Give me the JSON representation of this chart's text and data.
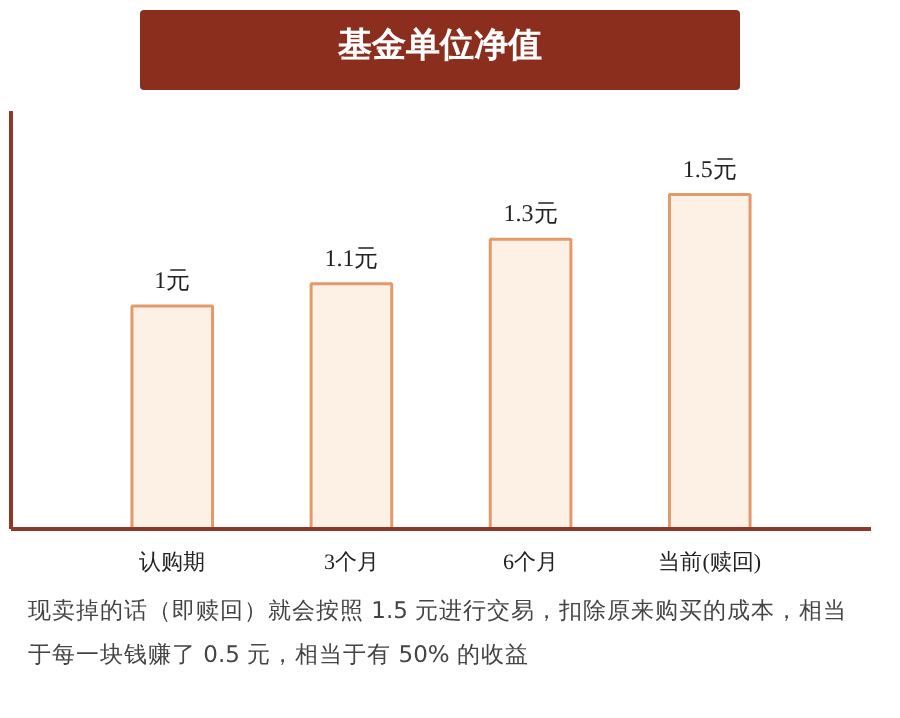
{
  "chart_data": {
    "type": "bar",
    "title": "基金单位净值",
    "categories": [
      "认购期",
      "3个月",
      "6个月",
      "当前(赎回)"
    ],
    "values": [
      1,
      1.1,
      1.3,
      1.5
    ],
    "value_labels": [
      "1元",
      "1.1元",
      "1.3元",
      "1.5元"
    ],
    "color": "#fdf0e4",
    "grid": false,
    "tick_labels": "x",
    "annotations": [
      "现卖掉的话（即赎回）就会按照 1.5 元进行交易，扣除原来购买的成本，相当于每一块钱赚了 0.5 元，相当于有 50% 的收益"
    ]
  }
}
